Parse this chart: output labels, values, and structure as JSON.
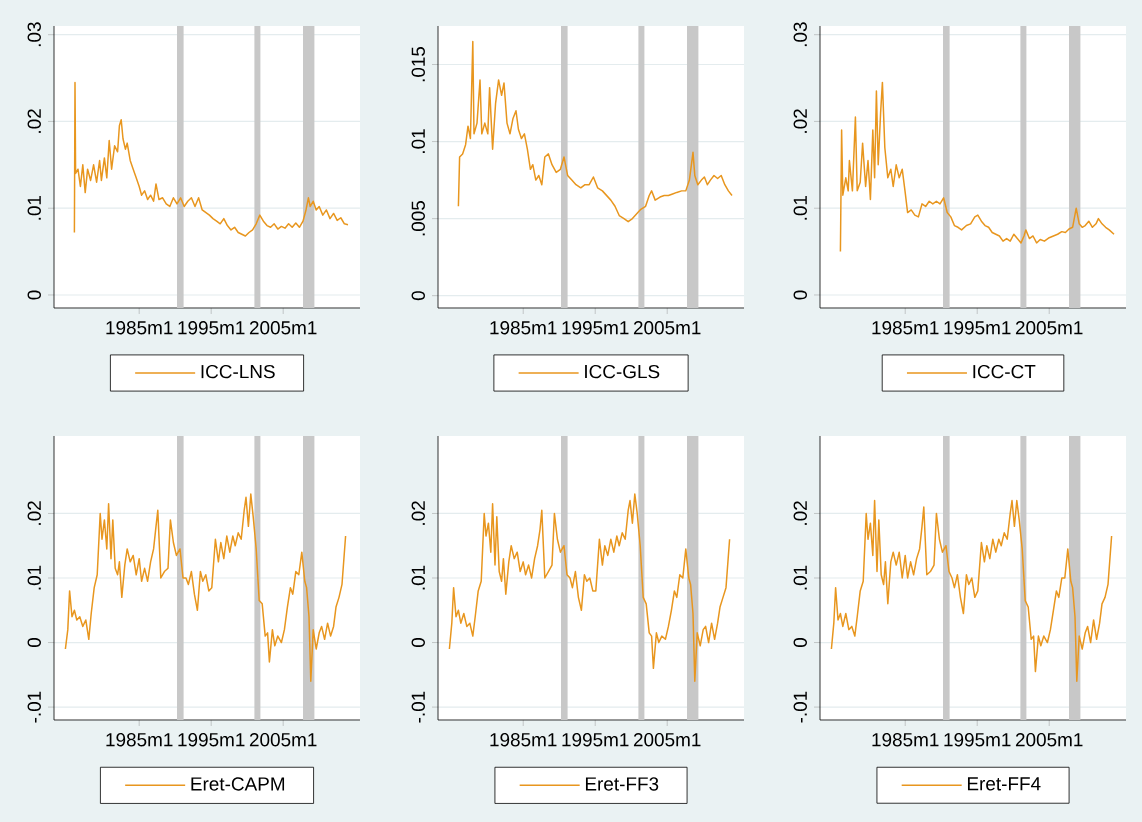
{
  "chart_data": [
    {
      "type": "line",
      "xlim": [
        "1973-03",
        "2015-09"
      ],
      "xticks": [
        {
          "value": "1985-01",
          "label": "1985m1"
        },
        {
          "value": "1995-01",
          "label": "1995m1"
        },
        {
          "value": "2005-01",
          "label": "2005m1"
        }
      ],
      "ylim": [
        -0.0015,
        0.031
      ],
      "yticks": [
        0,
        {
          "value": 0.01,
          "label": ".01"
        },
        {
          "value": 0.02,
          "label": ".02"
        },
        {
          "value": 0.03,
          "label": ".03"
        }
      ],
      "grid": "y",
      "legend": "bottom",
      "bands": [
        {
          "axis": "x",
          "from": "1990-04",
          "to": "1991-03",
          "color": "#c8c8c8"
        },
        {
          "axis": "x",
          "from": "2001-01",
          "to": "2001-11",
          "color": "#c8c8c8"
        },
        {
          "axis": "x",
          "from": "2007-10",
          "to": "2009-05",
          "color": "#c8c8c8"
        }
      ],
      "x": [
        "1976-01",
        "1976-02",
        "1976-03",
        "1976-07",
        "1976-11",
        "1977-03",
        "1977-07",
        "1977-11",
        "1978-04",
        "1978-09",
        "1979-02",
        "1979-07",
        "1979-10",
        "1980-03",
        "1980-07",
        "1980-11",
        "1981-03",
        "1981-08",
        "1982-01",
        "1982-04",
        "1982-07",
        "1982-10",
        "1983-02",
        "1983-05",
        "1983-10",
        "1984-03",
        "1984-08",
        "1985-01",
        "1985-05",
        "1985-10",
        "1986-03",
        "1986-08",
        "1987-01",
        "1987-05",
        "1987-10",
        "1988-04",
        "1988-10",
        "1989-04",
        "1989-10",
        "1990-04",
        "1990-10",
        "1991-04",
        "1991-10",
        "1992-04",
        "1992-10",
        "1993-04",
        "1993-10",
        "1994-04",
        "1994-10",
        "1995-04",
        "1995-10",
        "1996-04",
        "1996-10",
        "1997-04",
        "1997-10",
        "1998-04",
        "1998-10",
        "1999-04",
        "1999-10",
        "2000-04",
        "2000-10",
        "2001-04",
        "2001-10",
        "2002-04",
        "2002-10",
        "2003-04",
        "2003-10",
        "2004-04",
        "2004-10",
        "2005-04",
        "2005-10",
        "2006-04",
        "2006-10",
        "2007-04",
        "2007-10",
        "2008-03",
        "2008-07",
        "2008-10",
        "2009-03",
        "2009-08",
        "2010-01",
        "2010-07",
        "2011-01",
        "2011-07",
        "2012-01",
        "2012-07",
        "2013-01",
        "2013-07",
        "2014-01"
      ],
      "series": [
        {
          "name": "ICC-LNS",
          "color": "#e8961e",
          "values": [
            0.0072,
            0.0245,
            0.014,
            0.0145,
            0.0125,
            0.015,
            0.0118,
            0.0145,
            0.0132,
            0.015,
            0.013,
            0.0155,
            0.0132,
            0.0158,
            0.0135,
            0.0178,
            0.0145,
            0.0172,
            0.0165,
            0.0195,
            0.0202,
            0.018,
            0.0168,
            0.0175,
            0.0155,
            0.0145,
            0.0135,
            0.0125,
            0.0115,
            0.012,
            0.011,
            0.0115,
            0.0108,
            0.0128,
            0.011,
            0.0112,
            0.0105,
            0.0102,
            0.0112,
            0.0105,
            0.0112,
            0.0102,
            0.0108,
            0.0112,
            0.0102,
            0.0112,
            0.0098,
            0.0095,
            0.0092,
            0.0088,
            0.0085,
            0.0082,
            0.0088,
            0.008,
            0.0075,
            0.0078,
            0.0072,
            0.007,
            0.0068,
            0.0072,
            0.0075,
            0.0082,
            0.0092,
            0.0085,
            0.008,
            0.0078,
            0.0082,
            0.0076,
            0.0079,
            0.0077,
            0.0082,
            0.0078,
            0.0083,
            0.0078,
            0.0085,
            0.0098,
            0.0112,
            0.0102,
            0.0108,
            0.0098,
            0.0102,
            0.0092,
            0.0098,
            0.0088,
            0.0094,
            0.0086,
            0.0089,
            0.0082,
            0.0081
          ]
        }
      ]
    },
    {
      "type": "line",
      "xlim": [
        "1973-03",
        "2015-09"
      ],
      "xticks": [
        {
          "value": "1985-01",
          "label": "1985m1"
        },
        {
          "value": "1995-01",
          "label": "1995m1"
        },
        {
          "value": "2005-01",
          "label": "2005m1"
        }
      ],
      "ylim": [
        -0.0008,
        0.0175
      ],
      "yticks": [
        0,
        {
          "value": 0.005,
          "label": ".005"
        },
        {
          "value": 0.01,
          "label": ".01"
        },
        {
          "value": 0.015,
          "label": ".015"
        }
      ],
      "grid": "y",
      "legend": "bottom",
      "bands": [
        {
          "axis": "x",
          "from": "1990-04",
          "to": "1991-03",
          "color": "#c8c8c8"
        },
        {
          "axis": "x",
          "from": "2001-01",
          "to": "2001-11",
          "color": "#c8c8c8"
        },
        {
          "axis": "x",
          "from": "2007-10",
          "to": "2009-05",
          "color": "#c8c8c8"
        }
      ],
      "x": [
        "1976-01",
        "1976-03",
        "1976-08",
        "1977-01",
        "1977-05",
        "1977-09",
        "1978-01",
        "1978-03",
        "1978-08",
        "1979-01",
        "1979-04",
        "1979-09",
        "1980-02",
        "1980-05",
        "1980-10",
        "1981-03",
        "1981-08",
        "1982-01",
        "1982-05",
        "1982-10",
        "1983-03",
        "1983-08",
        "1984-01",
        "1984-05",
        "1984-10",
        "1985-03",
        "1985-08",
        "1986-01",
        "1986-05",
        "1986-10",
        "1987-03",
        "1987-08",
        "1988-01",
        "1988-07",
        "1989-01",
        "1989-08",
        "1990-03",
        "1990-09",
        "1991-03",
        "1991-10",
        "1992-05",
        "1993-01",
        "1993-08",
        "1994-03",
        "1994-10",
        "1995-05",
        "1996-01",
        "1996-08",
        "1997-03",
        "1997-10",
        "1998-05",
        "1999-01",
        "1999-08",
        "2000-03",
        "2000-10",
        "2001-05",
        "2002-01",
        "2002-07",
        "2002-11",
        "2003-05",
        "2004-01",
        "2004-08",
        "2005-03",
        "2005-10",
        "2006-05",
        "2007-01",
        "2007-08",
        "2008-02",
        "2008-08",
        "2008-11",
        "2009-04",
        "2009-10",
        "2010-03",
        "2010-08",
        "2011-01",
        "2011-07",
        "2012-01",
        "2012-07",
        "2013-01",
        "2013-07",
        "2014-01"
      ],
      "series": [
        {
          "name": "ICC-GLS",
          "color": "#e8961e",
          "values": [
            0.0058,
            0.009,
            0.0092,
            0.0098,
            0.011,
            0.0102,
            0.0165,
            0.0105,
            0.0112,
            0.014,
            0.0105,
            0.0112,
            0.0105,
            0.0135,
            0.0095,
            0.0125,
            0.014,
            0.013,
            0.0138,
            0.0112,
            0.0105,
            0.0115,
            0.012,
            0.0108,
            0.0102,
            0.0105,
            0.0095,
            0.0082,
            0.0085,
            0.0075,
            0.0078,
            0.0072,
            0.009,
            0.0092,
            0.0085,
            0.008,
            0.0082,
            0.009,
            0.0078,
            0.0075,
            0.0072,
            0.007,
            0.0072,
            0.0072,
            0.0077,
            0.007,
            0.0068,
            0.0065,
            0.0062,
            0.0058,
            0.0052,
            0.005,
            0.0048,
            0.005,
            0.0053,
            0.0056,
            0.0058,
            0.0065,
            0.0068,
            0.0062,
            0.0064,
            0.0065,
            0.0065,
            0.0066,
            0.0067,
            0.0068,
            0.0068,
            0.0075,
            0.0093,
            0.0078,
            0.0072,
            0.0075,
            0.0077,
            0.0072,
            0.0075,
            0.0078,
            0.0076,
            0.0078,
            0.0072,
            0.0068,
            0.0065
          ]
        }
      ]
    },
    {
      "type": "line",
      "xlim": [
        "1973-03",
        "2015-09"
      ],
      "xticks": [
        {
          "value": "1985-01",
          "label": "1985m1"
        },
        {
          "value": "1995-01",
          "label": "1995m1"
        },
        {
          "value": "2005-01",
          "label": "2005m1"
        }
      ],
      "ylim": [
        -0.0015,
        0.031
      ],
      "yticks": [
        0,
        {
          "value": 0.01,
          "label": ".01"
        },
        {
          "value": 0.02,
          "label": ".02"
        },
        {
          "value": 0.03,
          "label": ".03"
        }
      ],
      "grid": "y",
      "legend": "bottom",
      "bands": [
        {
          "axis": "x",
          "from": "1990-04",
          "to": "1991-03",
          "color": "#c8c8c8"
        },
        {
          "axis": "x",
          "from": "2001-01",
          "to": "2001-11",
          "color": "#c8c8c8"
        },
        {
          "axis": "x",
          "from": "2007-10",
          "to": "2009-05",
          "color": "#c8c8c8"
        }
      ],
      "x": [
        "1976-01",
        "1976-03",
        "1976-05",
        "1976-10",
        "1977-02",
        "1977-04",
        "1977-09",
        "1978-02",
        "1978-05",
        "1978-10",
        "1979-02",
        "1979-07",
        "1979-11",
        "1980-03",
        "1980-07",
        "1980-10",
        "1981-01",
        "1981-04",
        "1981-08",
        "1981-11",
        "1982-03",
        "1982-08",
        "1983-01",
        "1983-05",
        "1983-10",
        "1984-03",
        "1984-08",
        "1985-01",
        "1985-05",
        "1985-11",
        "1986-05",
        "1986-11",
        "1987-05",
        "1987-11",
        "1988-05",
        "1988-11",
        "1989-05",
        "1989-11",
        "1990-05",
        "1990-11",
        "1991-05",
        "1991-11",
        "1992-05",
        "1992-11",
        "1993-07",
        "1994-02",
        "1994-09",
        "1995-02",
        "1995-08",
        "1996-02",
        "1996-08",
        "1997-02",
        "1997-08",
        "1998-02",
        "1998-08",
        "1999-02",
        "1999-08",
        "2000-02",
        "2000-08",
        "2001-02",
        "2001-07",
        "2001-10",
        "2002-04",
        "2002-10",
        "2003-04",
        "2003-10",
        "2004-05",
        "2005-01",
        "2005-08",
        "2006-03",
        "2006-10",
        "2007-04",
        "2007-10",
        "2008-04",
        "2008-10",
        "2009-03",
        "2009-08",
        "2010-01",
        "2010-07",
        "2011-01",
        "2011-07",
        "2011-11",
        "2012-05",
        "2012-11",
        "2013-05",
        "2014-01"
      ],
      "series": [
        {
          "name": "ICC-CT",
          "color": "#e8961e",
          "values": [
            0.005,
            0.019,
            0.0115,
            0.0135,
            0.012,
            0.0155,
            0.012,
            0.0205,
            0.012,
            0.013,
            0.0175,
            0.0125,
            0.0155,
            0.011,
            0.019,
            0.0135,
            0.0235,
            0.015,
            0.021,
            0.0245,
            0.017,
            0.0135,
            0.0145,
            0.0125,
            0.015,
            0.0135,
            0.0145,
            0.0118,
            0.0095,
            0.0098,
            0.0092,
            0.009,
            0.0105,
            0.0102,
            0.0108,
            0.0105,
            0.0108,
            0.0105,
            0.0112,
            0.0095,
            0.009,
            0.008,
            0.0078,
            0.0075,
            0.008,
            0.0082,
            0.009,
            0.0092,
            0.0085,
            0.008,
            0.0078,
            0.0072,
            0.007,
            0.0068,
            0.0062,
            0.0065,
            0.0062,
            0.007,
            0.0065,
            0.006,
            0.0068,
            0.0075,
            0.0065,
            0.0068,
            0.006,
            0.0064,
            0.0062,
            0.0066,
            0.0068,
            0.007,
            0.0073,
            0.0072,
            0.0076,
            0.0078,
            0.01,
            0.0082,
            0.0078,
            0.008,
            0.0085,
            0.0078,
            0.0082,
            0.0088,
            0.0082,
            0.0078,
            0.0075,
            0.007
          ]
        }
      ]
    },
    {
      "type": "line",
      "xlim": [
        "1973-03",
        "2015-09"
      ],
      "xticks": [
        {
          "value": "1985-01",
          "label": "1985m1"
        },
        {
          "value": "1995-01",
          "label": "1995m1"
        },
        {
          "value": "2005-01",
          "label": "2005m1"
        }
      ],
      "ylim": [
        -0.012,
        0.032
      ],
      "yticks": [
        {
          "value": -0.01,
          "label": "-.01"
        },
        0,
        {
          "value": 0.01,
          "label": ".01"
        },
        {
          "value": 0.02,
          "label": ".02"
        }
      ],
      "grid": "y",
      "legend": "bottom",
      "bands": [
        {
          "axis": "x",
          "from": "1990-04",
          "to": "1991-03",
          "color": "#c8c8c8"
        },
        {
          "axis": "x",
          "from": "2001-01",
          "to": "2001-11",
          "color": "#c8c8c8"
        },
        {
          "axis": "x",
          "from": "2007-10",
          "to": "2009-05",
          "color": "#c8c8c8"
        }
      ],
      "x": [
        "1974-10",
        "1975-02",
        "1975-05",
        "1975-09",
        "1976-01",
        "1976-05",
        "1976-10",
        "1977-03",
        "1977-08",
        "1978-01",
        "1978-05",
        "1978-10",
        "1979-03",
        "1979-08",
        "1979-11",
        "1980-03",
        "1980-07",
        "1980-10",
        "1981-02",
        "1981-05",
        "1981-09",
        "1982-01",
        "1982-04",
        "1982-08",
        "1983-01",
        "1983-05",
        "1983-10",
        "1984-03",
        "1984-08",
        "1985-01",
        "1985-05",
        "1985-10",
        "1986-03",
        "1986-08",
        "1987-01",
        "1987-05",
        "1987-08",
        "1988-01",
        "1988-07",
        "1989-01",
        "1989-05",
        "1989-10",
        "1990-03",
        "1990-09",
        "1991-02",
        "1991-07",
        "1991-11",
        "1992-04",
        "1992-09",
        "1993-02",
        "1993-07",
        "1993-11",
        "1994-04",
        "1994-09",
        "1995-02",
        "1995-08",
        "1996-01",
        "1996-05",
        "1996-10",
        "1997-03",
        "1997-08",
        "1998-01",
        "1998-05",
        "1998-10",
        "1999-03",
        "1999-08",
        "1999-11",
        "2000-03",
        "2000-07",
        "2000-11",
        "2001-04",
        "2001-09",
        "2002-02",
        "2002-07",
        "2002-11",
        "2003-02",
        "2003-07",
        "2003-11",
        "2004-04",
        "2004-10",
        "2005-03",
        "2005-08",
        "2006-01",
        "2006-05",
        "2006-10",
        "2007-03",
        "2007-08",
        "2008-01",
        "2008-04",
        "2008-08",
        "2008-11",
        "2009-03",
        "2009-08",
        "2010-01",
        "2010-05",
        "2010-10",
        "2011-03",
        "2011-08",
        "2012-01",
        "2012-05",
        "2012-10",
        "2013-03",
        "2013-09"
      ],
      "series": [
        {
          "name": "Eret-CAPM",
          "color": "#e8961e",
          "values": [
            -0.001,
            0.002,
            0.008,
            0.004,
            0.005,
            0.0035,
            0.004,
            0.0025,
            0.0035,
            0.0005,
            0.0045,
            0.0085,
            0.0105,
            0.02,
            0.016,
            0.019,
            0.0145,
            0.0215,
            0.013,
            0.019,
            0.0115,
            0.0105,
            0.0125,
            0.007,
            0.012,
            0.0145,
            0.0125,
            0.0135,
            0.0105,
            0.013,
            0.0095,
            0.0115,
            0.0095,
            0.0125,
            0.0145,
            0.018,
            0.0205,
            0.01,
            0.011,
            0.0115,
            0.019,
            0.0155,
            0.0135,
            0.0145,
            0.01,
            0.01,
            0.009,
            0.011,
            0.0075,
            0.005,
            0.011,
            0.0095,
            0.0105,
            0.008,
            0.0085,
            0.016,
            0.0125,
            0.0155,
            0.013,
            0.0165,
            0.014,
            0.0165,
            0.015,
            0.017,
            0.016,
            0.0205,
            0.0225,
            0.018,
            0.023,
            0.0195,
            0.0145,
            0.0065,
            0.006,
            0.001,
            0.0015,
            -0.003,
            0.002,
            -0.0005,
            0.001,
            0,
            0.002,
            0.0055,
            0.0085,
            0.0075,
            0.011,
            0.0105,
            0.014,
            0.0095,
            0.0085,
            0.004,
            -0.006,
            0.002,
            -0.001,
            0.0015,
            0.0025,
            0.0005,
            0.003,
            0.001,
            0.0025,
            0.0055,
            0.007,
            0.009,
            0.0165
          ]
        }
      ]
    },
    {
      "type": "line",
      "xlim": [
        "1973-03",
        "2015-09"
      ],
      "xticks": [
        {
          "value": "1985-01",
          "label": "1985m1"
        },
        {
          "value": "1995-01",
          "label": "1995m1"
        },
        {
          "value": "2005-01",
          "label": "2005m1"
        }
      ],
      "ylim": [
        -0.012,
        0.032
      ],
      "yticks": [
        {
          "value": -0.01,
          "label": "-.01"
        },
        0,
        {
          "value": 0.01,
          "label": ".01"
        },
        {
          "value": 0.02,
          "label": ".02"
        }
      ],
      "grid": "y",
      "legend": "bottom",
      "bands": [
        {
          "axis": "x",
          "from": "1990-04",
          "to": "1991-03",
          "color": "#c8c8c8"
        },
        {
          "axis": "x",
          "from": "2001-01",
          "to": "2001-11",
          "color": "#c8c8c8"
        },
        {
          "axis": "x",
          "from": "2007-10",
          "to": "2009-05",
          "color": "#c8c8c8"
        }
      ],
      "x": [
        "1974-10",
        "1975-02",
        "1975-05",
        "1975-09",
        "1976-01",
        "1976-05",
        "1976-10",
        "1977-03",
        "1977-08",
        "1978-01",
        "1978-05",
        "1978-10",
        "1979-03",
        "1979-08",
        "1979-11",
        "1980-03",
        "1980-07",
        "1980-10",
        "1981-02",
        "1981-05",
        "1981-09",
        "1982-01",
        "1982-04",
        "1982-08",
        "1983-01",
        "1983-05",
        "1983-10",
        "1984-03",
        "1984-08",
        "1985-01",
        "1985-05",
        "1985-10",
        "1986-03",
        "1986-08",
        "1987-01",
        "1987-05",
        "1987-08",
        "1988-01",
        "1988-07",
        "1989-01",
        "1989-05",
        "1989-10",
        "1990-03",
        "1990-09",
        "1991-02",
        "1991-07",
        "1991-11",
        "1992-04",
        "1992-09",
        "1993-02",
        "1993-07",
        "1993-11",
        "1994-04",
        "1994-09",
        "1995-02",
        "1995-08",
        "1996-01",
        "1996-05",
        "1996-10",
        "1997-03",
        "1997-08",
        "1998-01",
        "1998-05",
        "1998-10",
        "1999-03",
        "1999-08",
        "1999-11",
        "2000-03",
        "2000-07",
        "2000-11",
        "2001-04",
        "2001-09",
        "2002-02",
        "2002-07",
        "2002-11",
        "2003-02",
        "2003-07",
        "2003-11",
        "2004-04",
        "2004-10",
        "2005-03",
        "2005-08",
        "2006-01",
        "2006-05",
        "2006-10",
        "2007-03",
        "2007-08",
        "2008-01",
        "2008-04",
        "2008-08",
        "2008-11",
        "2009-03",
        "2009-08",
        "2010-01",
        "2010-05",
        "2010-10",
        "2011-03",
        "2011-08",
        "2012-01",
        "2012-05",
        "2012-10",
        "2013-03",
        "2013-09"
      ],
      "series": [
        {
          "name": "Eret-FF3",
          "color": "#e8961e",
          "values": [
            -0.001,
            0.003,
            0.0085,
            0.004,
            0.005,
            0.003,
            0.0045,
            0.0025,
            0.003,
            0.001,
            0.004,
            0.008,
            0.0095,
            0.02,
            0.0165,
            0.0185,
            0.014,
            0.0215,
            0.012,
            0.0195,
            0.011,
            0.0095,
            0.013,
            0.0075,
            0.0125,
            0.015,
            0.013,
            0.014,
            0.011,
            0.0125,
            0.0105,
            0.012,
            0.01,
            0.013,
            0.015,
            0.0175,
            0.0205,
            0.01,
            0.011,
            0.012,
            0.02,
            0.016,
            0.014,
            0.015,
            0.0105,
            0.01,
            0.0085,
            0.011,
            0.007,
            0.005,
            0.0105,
            0.0095,
            0.01,
            0.008,
            0.008,
            0.016,
            0.012,
            0.015,
            0.0135,
            0.016,
            0.014,
            0.0165,
            0.015,
            0.017,
            0.016,
            0.0205,
            0.022,
            0.0185,
            0.023,
            0.02,
            0.015,
            0.007,
            0.006,
            0.0015,
            0.001,
            -0.004,
            0.0015,
            0,
            0.001,
            0.0005,
            0.0025,
            0.005,
            0.008,
            0.007,
            0.0105,
            0.01,
            0.0145,
            0.01,
            0.009,
            0.0045,
            -0.006,
            0.0015,
            -0.0005,
            0.002,
            0.0025,
            0,
            0.003,
            0.0005,
            0.003,
            0.0055,
            0.007,
            0.0085,
            0.016
          ]
        }
      ]
    },
    {
      "type": "line",
      "xlim": [
        "1973-03",
        "2015-09"
      ],
      "xticks": [
        {
          "value": "1985-01",
          "label": "1985m1"
        },
        {
          "value": "1995-01",
          "label": "1995m1"
        },
        {
          "value": "2005-01",
          "label": "2005m1"
        }
      ],
      "ylim": [
        -0.012,
        0.032
      ],
      "yticks": [
        {
          "value": -0.01,
          "label": "-.01"
        },
        0,
        {
          "value": 0.01,
          "label": ".01"
        },
        {
          "value": 0.02,
          "label": ".02"
        }
      ],
      "grid": "y",
      "legend": "bottom",
      "bands": [
        {
          "axis": "x",
          "from": "1990-04",
          "to": "1991-03",
          "color": "#c8c8c8"
        },
        {
          "axis": "x",
          "from": "2001-01",
          "to": "2001-11",
          "color": "#c8c8c8"
        },
        {
          "axis": "x",
          "from": "2007-10",
          "to": "2009-05",
          "color": "#c8c8c8"
        }
      ],
      "x": [
        "1974-10",
        "1975-02",
        "1975-05",
        "1975-09",
        "1976-01",
        "1976-05",
        "1976-10",
        "1977-03",
        "1977-08",
        "1978-01",
        "1978-05",
        "1978-10",
        "1979-03",
        "1979-08",
        "1979-11",
        "1980-03",
        "1980-07",
        "1980-10",
        "1981-02",
        "1981-05",
        "1981-09",
        "1982-01",
        "1982-04",
        "1982-08",
        "1983-01",
        "1983-05",
        "1983-10",
        "1984-03",
        "1984-08",
        "1985-01",
        "1985-05",
        "1985-10",
        "1986-03",
        "1986-08",
        "1987-01",
        "1987-05",
        "1987-08",
        "1988-01",
        "1988-07",
        "1989-01",
        "1989-05",
        "1989-10",
        "1990-03",
        "1990-09",
        "1991-02",
        "1991-07",
        "1991-11",
        "1992-04",
        "1992-09",
        "1993-02",
        "1993-07",
        "1993-11",
        "1994-04",
        "1994-09",
        "1995-02",
        "1995-08",
        "1996-01",
        "1996-05",
        "1996-10",
        "1997-03",
        "1997-08",
        "1998-01",
        "1998-05",
        "1998-10",
        "1999-03",
        "1999-08",
        "1999-11",
        "2000-03",
        "2000-07",
        "2000-11",
        "2001-04",
        "2001-09",
        "2002-02",
        "2002-07",
        "2002-11",
        "2003-02",
        "2003-07",
        "2003-11",
        "2004-04",
        "2004-10",
        "2005-03",
        "2005-08",
        "2006-01",
        "2006-05",
        "2006-10",
        "2007-03",
        "2007-08",
        "2008-01",
        "2008-04",
        "2008-08",
        "2008-11",
        "2009-03",
        "2009-08",
        "2010-01",
        "2010-05",
        "2010-10",
        "2011-03",
        "2011-08",
        "2012-01",
        "2012-05",
        "2012-10",
        "2013-03",
        "2013-09"
      ],
      "series": [
        {
          "name": "Eret-FF4",
          "color": "#e8961e",
          "values": [
            -0.001,
            0.003,
            0.0085,
            0.0035,
            0.0045,
            0.0025,
            0.0045,
            0.002,
            0.0025,
            0.001,
            0.004,
            0.008,
            0.0095,
            0.02,
            0.016,
            0.0185,
            0.0135,
            0.022,
            0.011,
            0.019,
            0.0105,
            0.009,
            0.0125,
            0.006,
            0.0125,
            0.014,
            0.012,
            0.014,
            0.01,
            0.0135,
            0.01,
            0.0125,
            0.0105,
            0.013,
            0.0145,
            0.018,
            0.021,
            0.0105,
            0.011,
            0.012,
            0.02,
            0.016,
            0.014,
            0.015,
            0.011,
            0.01,
            0.0085,
            0.0105,
            0.007,
            0.0045,
            0.0105,
            0.009,
            0.01,
            0.007,
            0.008,
            0.0155,
            0.0125,
            0.015,
            0.013,
            0.016,
            0.014,
            0.016,
            0.015,
            0.017,
            0.016,
            0.02,
            0.022,
            0.018,
            0.022,
            0.019,
            0.0145,
            0.0065,
            0.0055,
            0.0005,
            0.001,
            -0.0045,
            0.001,
            -0.0005,
            0.001,
            0,
            0.002,
            0.005,
            0.008,
            0.007,
            0.01,
            0.01,
            0.0145,
            0.0095,
            0.0085,
            0.004,
            -0.006,
            0.001,
            -0.001,
            0.0015,
            0.0025,
            0,
            0.0035,
            0.0005,
            0.003,
            0.006,
            0.007,
            0.009,
            0.0165
          ]
        }
      ]
    }
  ]
}
